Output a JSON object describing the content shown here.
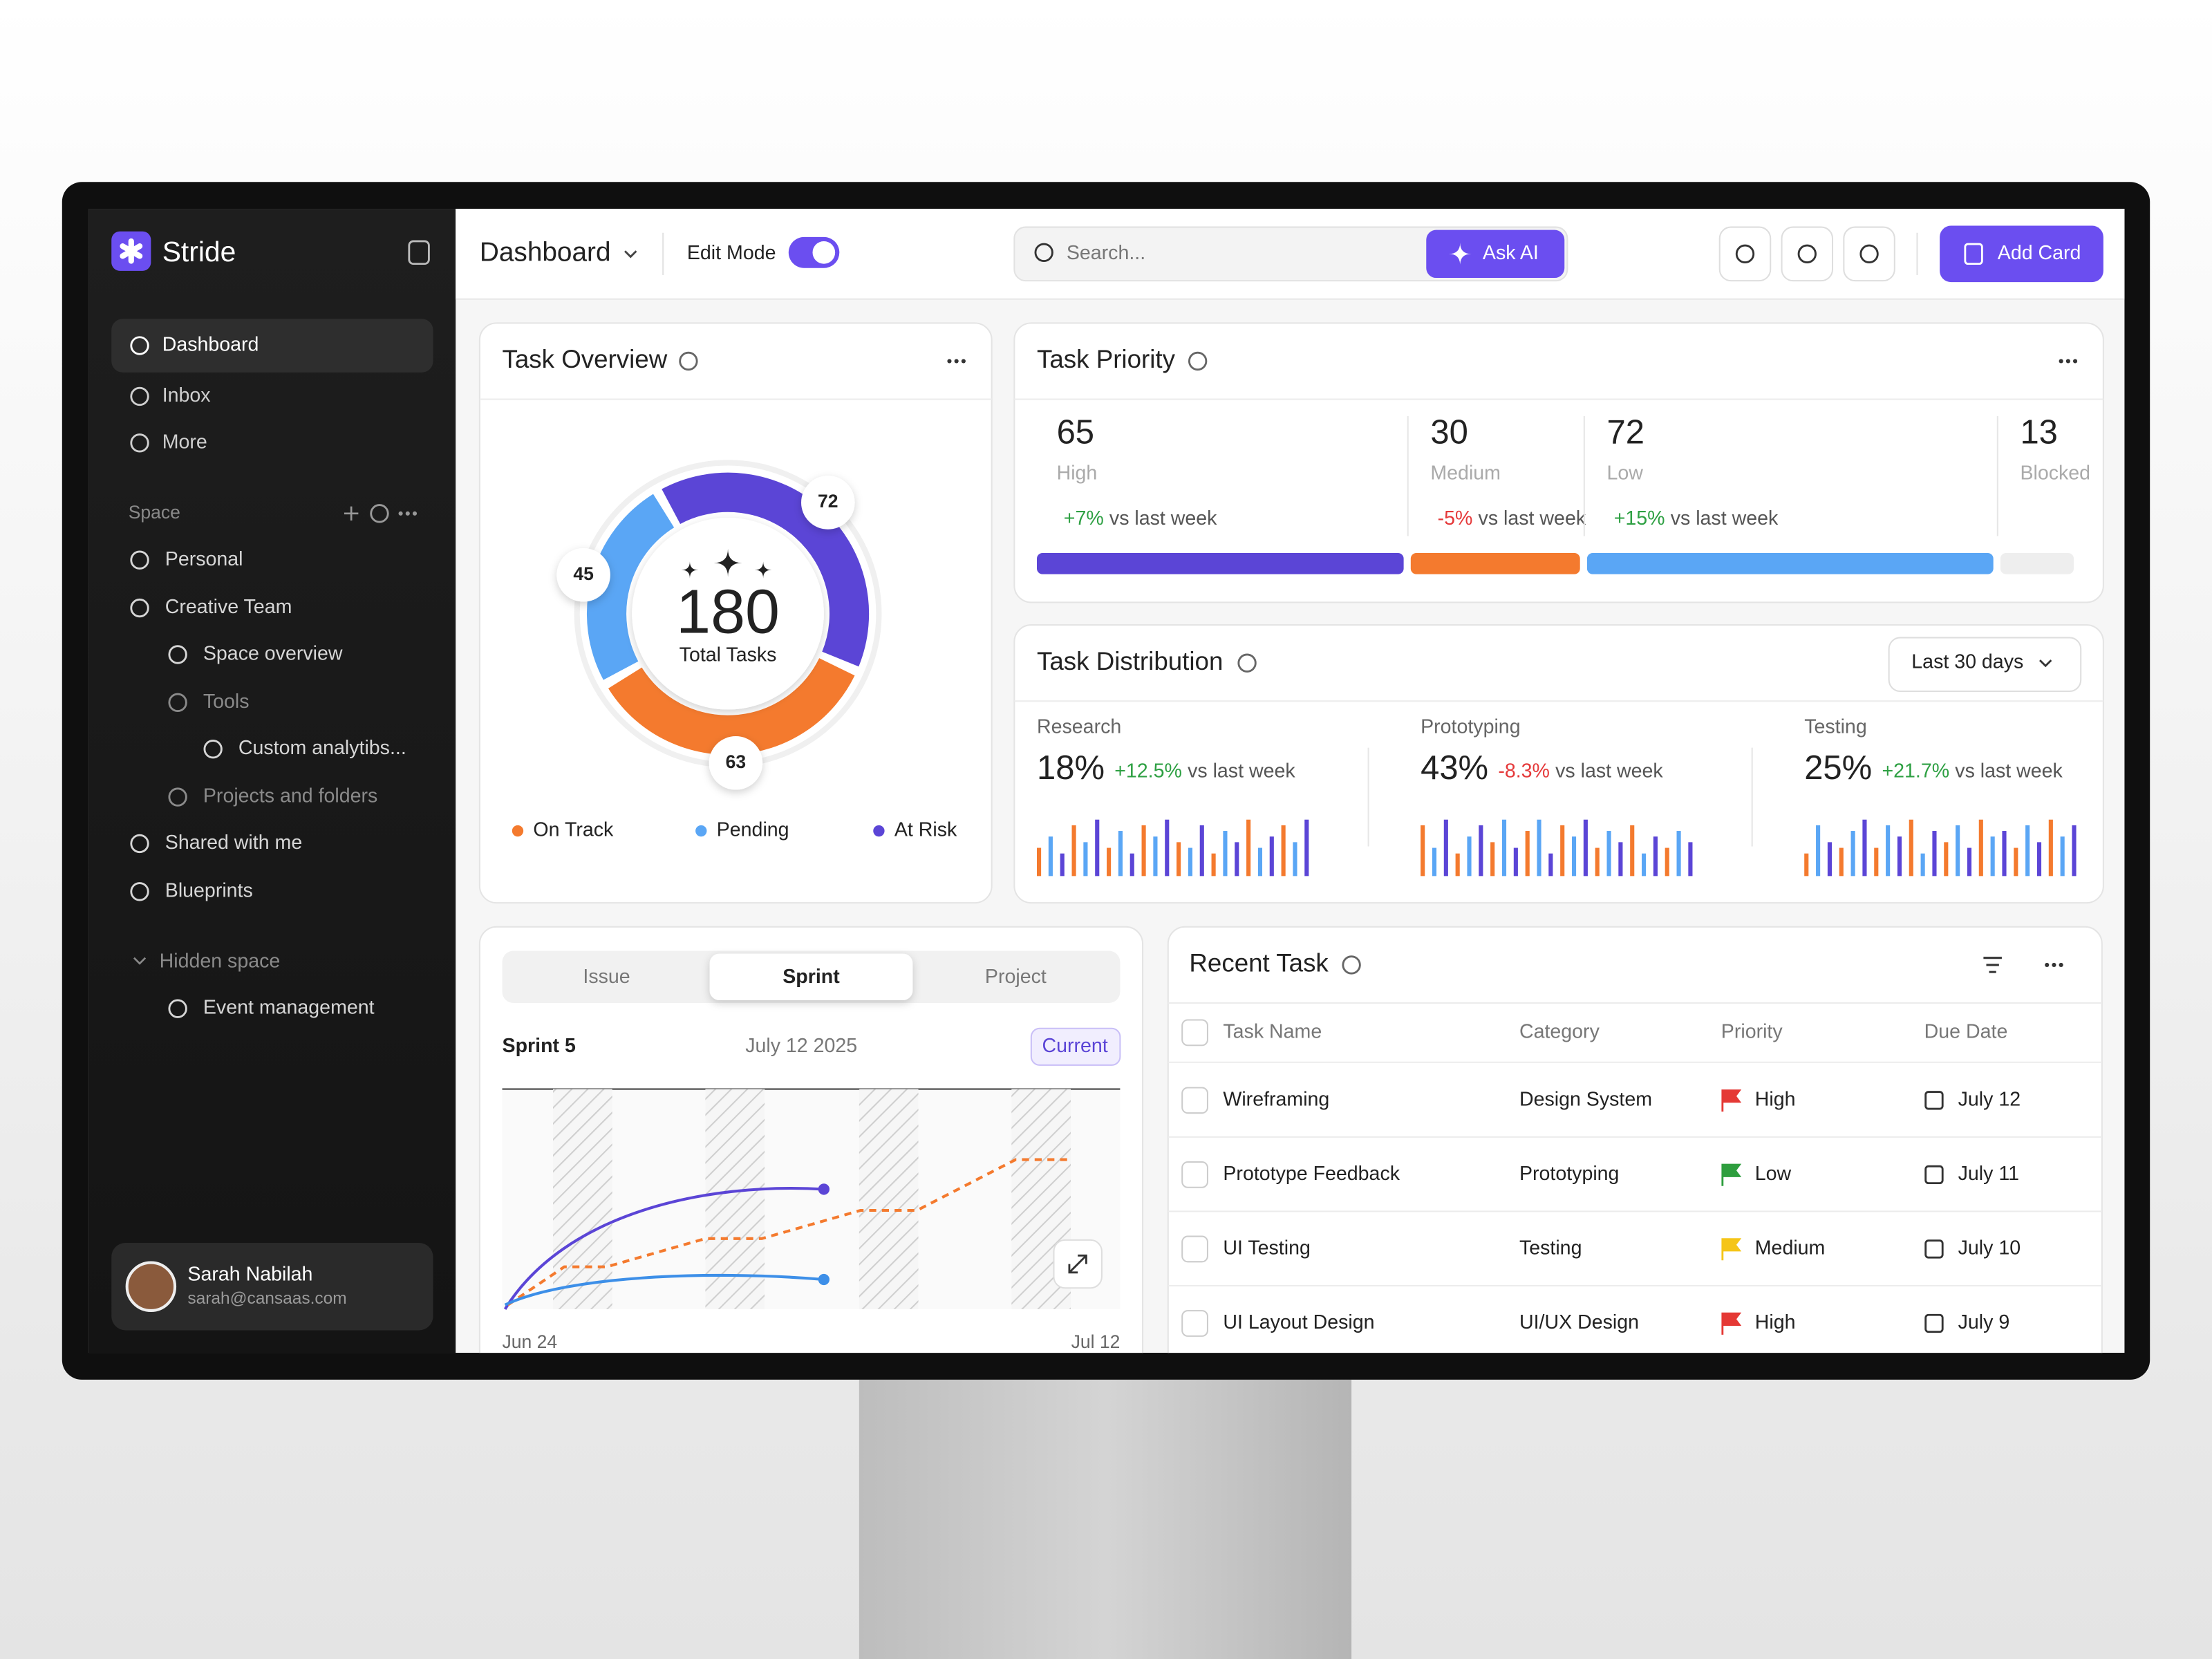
{
  "sidebar": {
    "brand": "Stride",
    "nav": [
      "Dashboard",
      "Inbox",
      "More"
    ],
    "space": {
      "label": "Space",
      "items": [
        "Personal",
        "Creative Team",
        "Space overview",
        "Tools",
        "Custom analytibs...",
        "Projects and folders",
        "Shared with me",
        "Blueprints"
      ]
    },
    "hidden_space": {
      "label": "Hidden space",
      "items": [
        "Event management"
      ]
    },
    "user": {
      "name": "Sarah Nabilah",
      "email": "sarah@cansaas.com"
    }
  },
  "topbar": {
    "title": "Dashboard",
    "edit_mode": "Edit Mode",
    "search_placeholder": "Search...",
    "ask_ai": "Ask AI",
    "add_card": "Add Card"
  },
  "task_overview": {
    "title": "Task Overview",
    "total": 180,
    "total_label": "Total Tasks",
    "segments": [
      {
        "name": "Pending",
        "value": 45,
        "color": "#5aa6f5"
      },
      {
        "name": "At Risk",
        "value": 72,
        "color": "#5b45d6"
      },
      {
        "name": "On Track",
        "value": 63,
        "color": "#f47a2e"
      }
    ],
    "legend_order": [
      2,
      0,
      1
    ]
  },
  "task_priority": {
    "title": "Task Priority",
    "items": [
      {
        "value": 65,
        "label": "High",
        "change": "+7%",
        "change_text": "vs last week",
        "color": "#5b45d6"
      },
      {
        "value": 30,
        "label": "Medium",
        "change": "-5%",
        "change_text": "vs last week",
        "color": "#f47a2e"
      },
      {
        "value": 72,
        "label": "Low",
        "change": "+15%",
        "change_text": "vs last week",
        "color": "#5aa6f5"
      },
      {
        "value": 13,
        "label": "Blocked",
        "color": "#eeeeee"
      }
    ]
  },
  "task_distribution": {
    "title": "Task Distribution",
    "range": "Last 30 days",
    "bar_colors": [
      "#f47a2e",
      "#5aa6f5",
      "#5b45d6"
    ],
    "items": [
      {
        "name": "Research",
        "percent": "18%",
        "change": "+12.5%",
        "change_text": "vs last week",
        "bars": [
          5,
          7,
          4,
          9,
          6,
          10,
          5,
          8,
          4,
          9,
          7,
          10,
          6,
          5,
          9,
          4,
          8,
          6,
          10,
          5,
          7,
          9,
          6,
          10
        ]
      },
      {
        "name": "Prototyping",
        "percent": "43%",
        "change": "-8.3%",
        "change_text": "vs last week",
        "bars": [
          9,
          5,
          10,
          4,
          7,
          9,
          6,
          10,
          5,
          8,
          10,
          4,
          9,
          7,
          10,
          5,
          8,
          6,
          9,
          4,
          7,
          5,
          8,
          6
        ]
      },
      {
        "name": "Testing",
        "percent": "25%",
        "change": "+21.7%",
        "change_text": "vs last week",
        "bars": [
          4,
          9,
          6,
          5,
          8,
          10,
          5,
          9,
          7,
          10,
          4,
          8,
          6,
          9,
          5,
          10,
          7,
          8,
          5,
          9,
          6,
          10,
          7,
          9
        ]
      }
    ]
  },
  "sprint": {
    "tabs": [
      "Issue",
      "Sprint",
      "Project"
    ],
    "active_tab": 1,
    "name": "Sprint 5",
    "date": "July 12 2025",
    "status": "Current",
    "x_start": "Jun 24",
    "x_end": "Jul 12"
  },
  "recent_task": {
    "title": "Recent Task",
    "columns": [
      "Task Name",
      "Category",
      "Priority",
      "Due Date"
    ],
    "rows": [
      {
        "name": "Wireframing",
        "category": "Design System",
        "priority": "High",
        "flag": "#e53935",
        "due": "July 12"
      },
      {
        "name": "Prototype Feedback",
        "category": "Prototyping",
        "priority": "Low",
        "flag": "#2e9e3e",
        "due": "July 11"
      },
      {
        "name": "UI Testing",
        "category": "Testing",
        "priority": "Medium",
        "flag": "#f5c518",
        "due": "July 10"
      },
      {
        "name": "UI Layout Design",
        "category": "UI/UX Design",
        "priority": "High",
        "flag": "#e53935",
        "due": "July 9"
      }
    ]
  }
}
